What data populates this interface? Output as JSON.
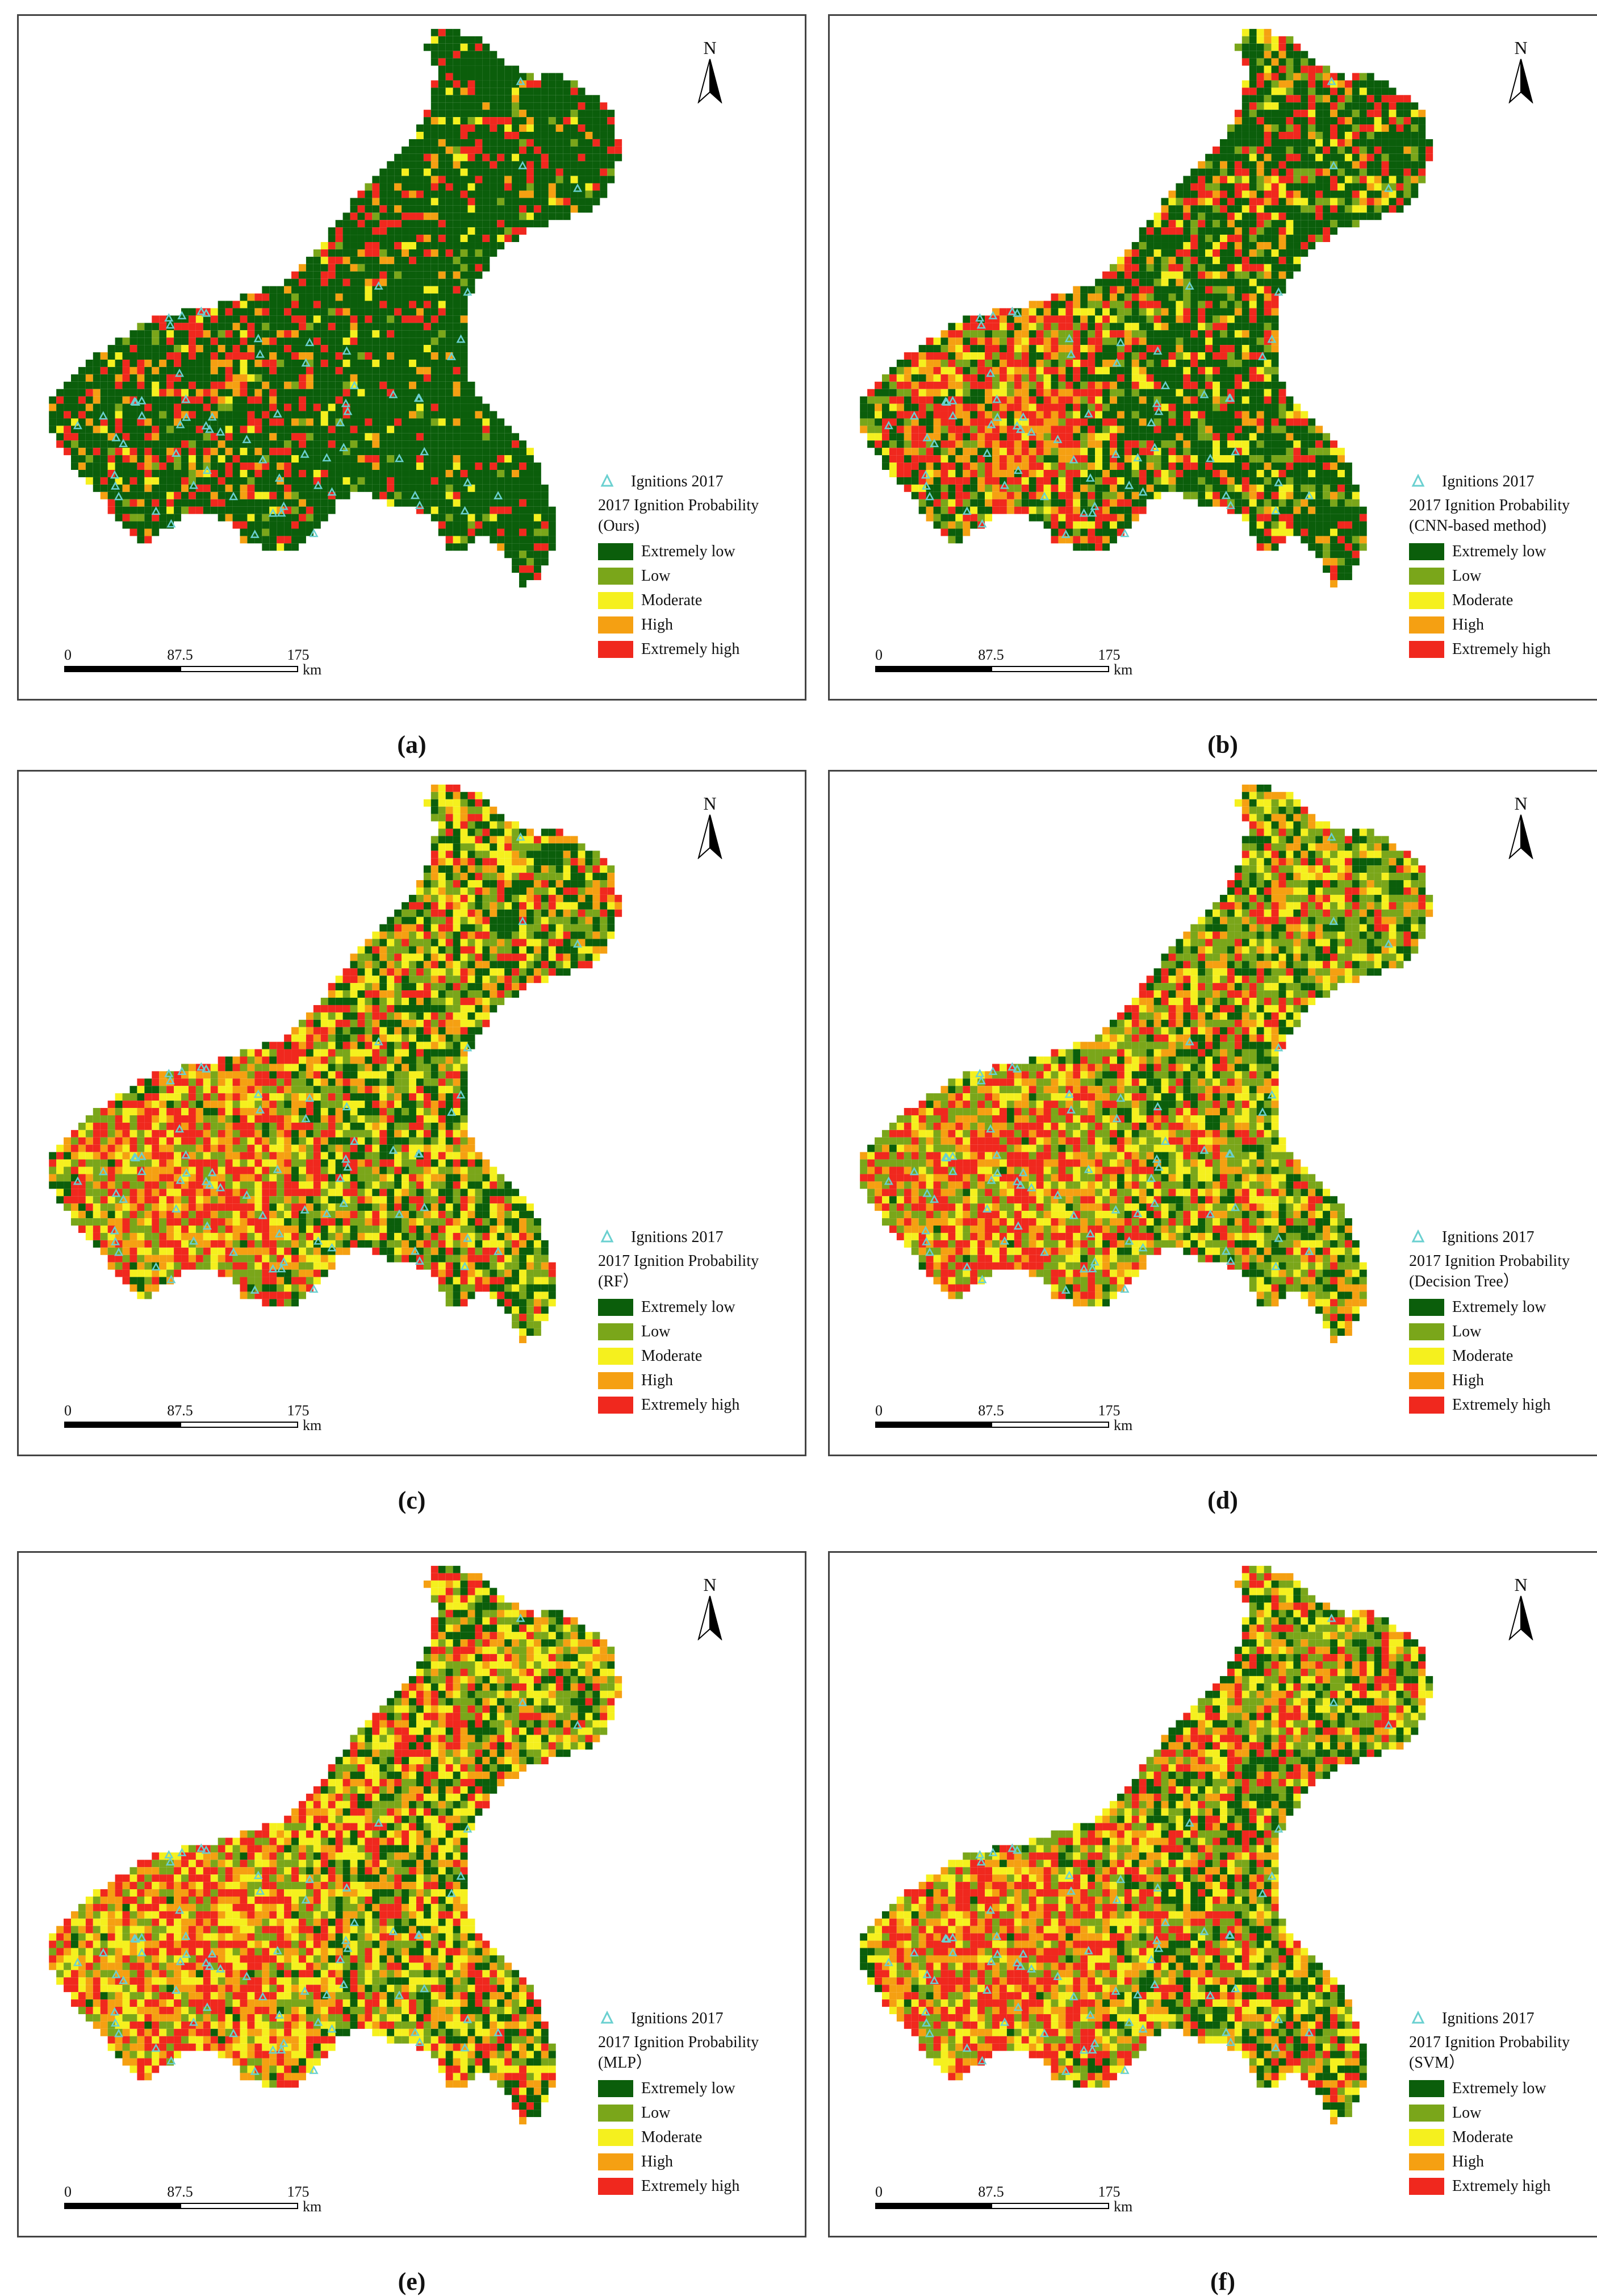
{
  "north_label": "N",
  "panels": [
    {
      "caption": "(a)",
      "ignitions": "Ignitions 2017",
      "title": "2017 Ignition Probability",
      "method": "(Ours)",
      "profile": "ours"
    },
    {
      "caption": "(b)",
      "ignitions": "Ignitions 2017",
      "title": "2017 Ignition Probability",
      "method": "(CNN-based method)",
      "profile": "cnn"
    },
    {
      "caption": "(c)",
      "ignitions": "Ignitions 2017",
      "title": "2017 Ignition Probability",
      "method": "(RF）",
      "profile": "rf"
    },
    {
      "caption": "(d)",
      "ignitions": "Ignitions 2017",
      "title": "2017 Ignition Probability",
      "method": "(Decision Tree）",
      "profile": "dt"
    },
    {
      "caption": "(e)",
      "ignitions": "Ignitions 2017",
      "title": "2017 Ignition Probability",
      "method": "(MLP）",
      "profile": "mlp"
    },
    {
      "caption": "(f)",
      "ignitions": "Ignitions 2017",
      "title": "2017 Ignition Probability",
      "method": "(SVM）",
      "profile": "svm"
    }
  ],
  "legend_classes": [
    {
      "label": "Extremely low",
      "color": "#0b5e0b"
    },
    {
      "label": "Low",
      "color": "#7aa61a"
    },
    {
      "label": "Moderate",
      "color": "#f5f01e"
    },
    {
      "label": "High",
      "color": "#f5a012"
    },
    {
      "label": "Extremely high",
      "color": "#f0281e"
    }
  ],
  "ignition_color": "#6ad0d0",
  "scale_bar": {
    "ticks": [
      "0",
      "87.5",
      "175"
    ],
    "unit": "km"
  }
}
